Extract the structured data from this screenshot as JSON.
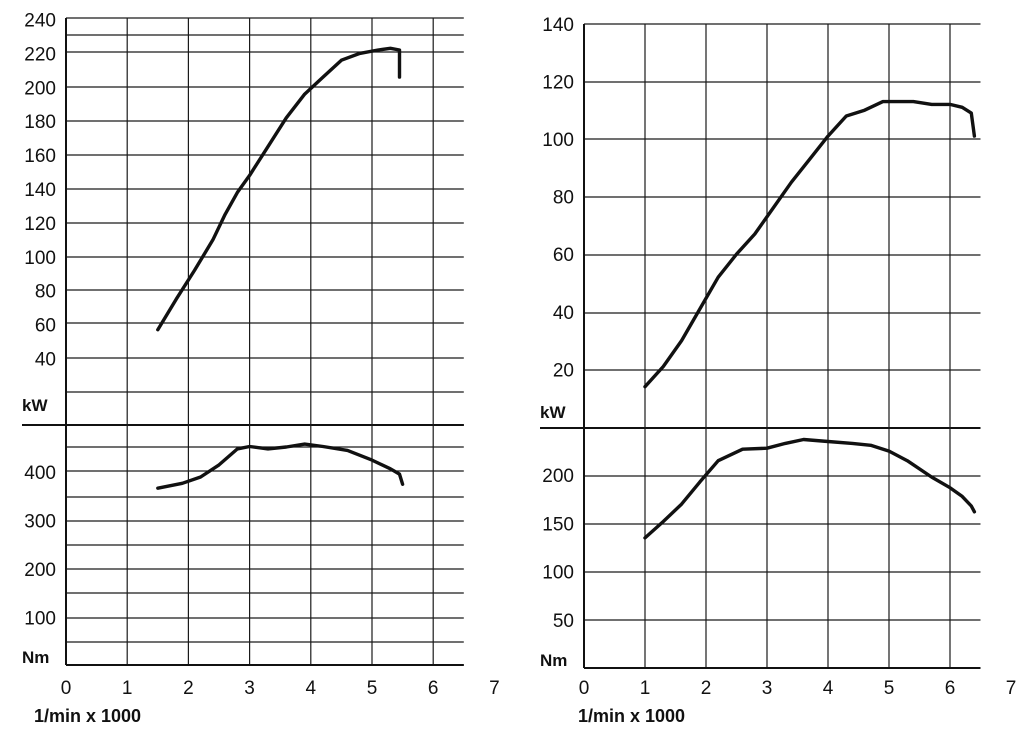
{
  "chart_data": [
    {
      "type": "line",
      "xlabel": "1/min x 1000",
      "x_ticks": [
        "0",
        "1",
        "2",
        "3",
        "4",
        "5",
        "6",
        "7"
      ],
      "xlim": [
        0,
        7
      ],
      "power": {
        "unit": "kW",
        "ylim": [
          20,
          240
        ],
        "tick_labels": [
          "40",
          "60",
          "80",
          "100",
          "120",
          "140",
          "160",
          "180",
          "200",
          "220",
          "240"
        ],
        "x": [
          1.5,
          1.8,
          2.1,
          2.4,
          2.6,
          2.8,
          3.0,
          3.3,
          3.6,
          3.9,
          4.2,
          4.5,
          4.8,
          5.1,
          5.3,
          5.45,
          5.45
        ],
        "y": [
          57,
          75,
          92,
          110,
          125,
          138,
          148,
          165,
          182,
          196,
          206,
          216,
          220,
          222,
          223,
          222,
          206
        ]
      },
      "torque": {
        "unit": "Nm",
        "ylim": [
          0,
          480
        ],
        "tick_labels": [
          "100",
          "200",
          "300",
          "400"
        ],
        "x": [
          1.5,
          1.9,
          2.2,
          2.5,
          2.8,
          3.0,
          3.3,
          3.6,
          3.9,
          4.2,
          4.6,
          5.0,
          5.3,
          5.45,
          5.5
        ],
        "y": [
          367,
          377,
          390,
          415,
          448,
          453,
          448,
          452,
          458,
          453,
          445,
          425,
          407,
          396,
          375
        ]
      }
    },
    {
      "type": "line",
      "xlabel": "1/min x 1000",
      "x_ticks": [
        "0",
        "1",
        "2",
        "3",
        "4",
        "5",
        "6",
        "7"
      ],
      "xlim": [
        0,
        7
      ],
      "power": {
        "unit": "kW",
        "ylim": [
          0,
          140
        ],
        "tick_labels": [
          "20",
          "40",
          "60",
          "80",
          "100",
          "120",
          "140"
        ],
        "x": [
          1.0,
          1.3,
          1.6,
          1.9,
          2.2,
          2.5,
          2.8,
          3.1,
          3.4,
          3.7,
          4.0,
          4.3,
          4.6,
          4.9,
          5.1,
          5.4,
          5.7,
          6.0,
          6.2,
          6.35,
          6.4
        ],
        "y": [
          14,
          21,
          30,
          41,
          52,
          60,
          67,
          76,
          85,
          93,
          101,
          108,
          110,
          113,
          113,
          113,
          112,
          112,
          111,
          109,
          101
        ]
      },
      "torque": {
        "unit": "Nm",
        "ylim": [
          0,
          250
        ],
        "tick_labels": [
          "50",
          "100",
          "150",
          "200"
        ],
        "x": [
          1.0,
          1.3,
          1.6,
          1.9,
          2.2,
          2.6,
          3.0,
          3.3,
          3.6,
          4.0,
          4.4,
          4.7,
          5.0,
          5.3,
          5.7,
          6.0,
          6.2,
          6.35,
          6.4
        ],
        "y": [
          135,
          152,
          170,
          193,
          215,
          227,
          228,
          233,
          237,
          235,
          233,
          231,
          225,
          215,
          198,
          187,
          178,
          168,
          162
        ]
      }
    }
  ]
}
